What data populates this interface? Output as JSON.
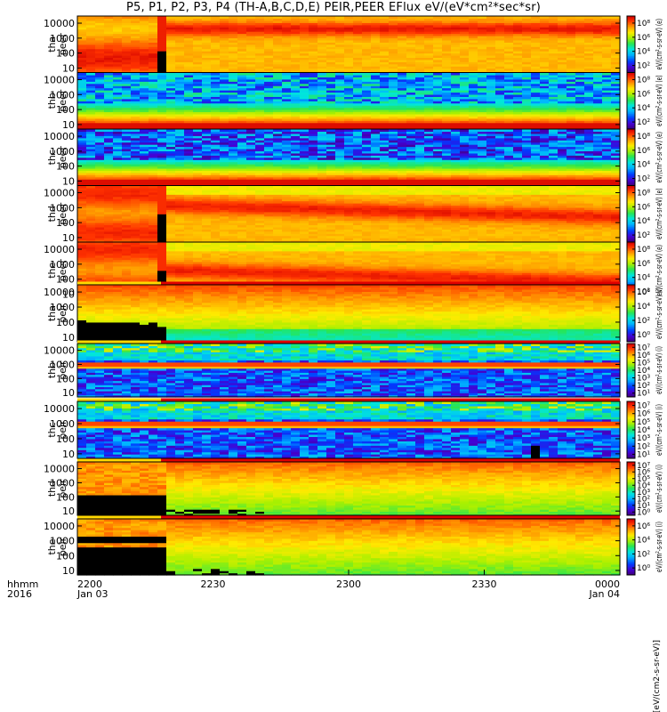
{
  "title": "P5, P1, P2, P3, P4 (TH-A,B,C,D,E) PEIR,PEER EFlux eV/(eV*cm²*sec*sr)",
  "chart_data": {
    "type": "heatmap",
    "x_ticks": [
      {
        "label": "2200",
        "sub": "Jan 03",
        "minutes": 0
      },
      {
        "label": "2230",
        "sub": "",
        "minutes": 30
      },
      {
        "label": "2300",
        "sub": "",
        "minutes": 60
      },
      {
        "label": "2330",
        "sub": "",
        "minutes": 90
      },
      {
        "label": "0000",
        "sub": "Jan 04",
        "minutes": 120
      }
    ],
    "x_range_minutes": [
      0,
      120
    ],
    "x_axis_label_1": "hhmm",
    "x_axis_label_2": "2016",
    "y_ticks": [
      "10000",
      "1000",
      "100",
      "10"
    ],
    "y_tick_values": [
      10000,
      1000,
      100,
      10
    ],
    "y_range_eV": [
      5,
      30000
    ],
    "panels": [
      {
        "label1": "tha",
        "label2": "peer",
        "cb_ticks": [
          "10⁸",
          "10⁶",
          "10⁴",
          "10²"
        ],
        "cb_exp": [
          8,
          6,
          4,
          2
        ],
        "cb_range": [
          1,
          9
        ],
        "cb_label": "eV/(cm²-s-sr-eV) (e)"
      },
      {
        "label1": "thb",
        "label2": "peer",
        "cb_ticks": [
          "10⁸",
          "10⁶",
          "10⁴",
          "10²"
        ],
        "cb_exp": [
          8,
          6,
          4,
          2
        ],
        "cb_range": [
          1,
          9
        ],
        "cb_label": "eV/(cm²-s-sr-eV) (e)"
      },
      {
        "label1": "thc",
        "label2": "peer",
        "cb_ticks": [
          "10⁸",
          "10⁶",
          "10⁴",
          "10²"
        ],
        "cb_exp": [
          8,
          6,
          4,
          2
        ],
        "cb_range": [
          1,
          9
        ],
        "cb_label": "eV/(cm²-s-sr-eV) (e)"
      },
      {
        "label1": "thd",
        "label2": "peer",
        "cb_ticks": [
          "10⁸",
          "10⁶",
          "10⁴",
          "10²"
        ],
        "cb_exp": [
          8,
          6,
          4,
          2
        ],
        "cb_range": [
          1,
          9
        ],
        "cb_label": "eV/(cm²-s-sr-eV) (e)"
      },
      {
        "label1": "the",
        "label2": "peer",
        "cb_ticks": [
          "10⁸",
          "10⁶",
          "10⁴",
          "10²"
        ],
        "cb_exp": [
          8,
          6,
          4,
          2
        ],
        "cb_range": [
          1,
          9
        ],
        "cb_label": "eV/(cm²-s-sr-eV) (e)"
      },
      {
        "label1": "tha",
        "label2": "peir",
        "cb_ticks": [
          "10⁶",
          "10⁴",
          "10²",
          "10⁰"
        ],
        "cb_exp": [
          6,
          4,
          2,
          0
        ],
        "cb_range": [
          -1,
          7
        ],
        "cb_label": "eV/(cm²-s-sr-eV) (i)"
      },
      {
        "label1": "thb",
        "label2": "peir",
        "cb_ticks": [
          "10⁷",
          "10⁶",
          "10⁵",
          "10⁴",
          "10³",
          "10²",
          "10¹"
        ],
        "cb_exp": [
          7,
          6,
          5,
          4,
          3,
          2,
          1
        ],
        "cb_range": [
          0.5,
          7.5
        ],
        "cb_label": "eV/(cm²-s-sr-eV) (i)"
      },
      {
        "label1": "thc",
        "label2": "peir",
        "cb_ticks": [
          "10⁷",
          "10⁶",
          "10⁵",
          "10⁴",
          "10³",
          "10²",
          "10¹"
        ],
        "cb_exp": [
          7,
          6,
          5,
          4,
          3,
          2,
          1
        ],
        "cb_range": [
          0.5,
          7.5
        ],
        "cb_label": "eV/(cm²-s-sr-eV) (i)"
      },
      {
        "label1": "thd",
        "label2": "peir",
        "cb_ticks": [
          "10⁷",
          "10⁶",
          "10⁵",
          "10⁴",
          "10³",
          "10²",
          "10¹",
          "10⁰"
        ],
        "cb_exp": [
          7,
          6,
          5,
          4,
          3,
          2,
          1,
          0
        ],
        "cb_range": [
          -0.5,
          7.5
        ],
        "cb_label": "eV/(cm²-s-sr-eV) (i)"
      },
      {
        "label1": "the",
        "label2": "peir",
        "cb_ticks": [
          "10⁶",
          "10⁴",
          "10²",
          "10⁰"
        ],
        "cb_exp": [
          6,
          4,
          2,
          0
        ],
        "cb_range": [
          -1,
          7
        ],
        "cb_label": "eV/(cm²-s-sr-eV) (i)"
      }
    ],
    "bottom_cb_label": "[eV/(cm2-s-sr-eV)]"
  }
}
